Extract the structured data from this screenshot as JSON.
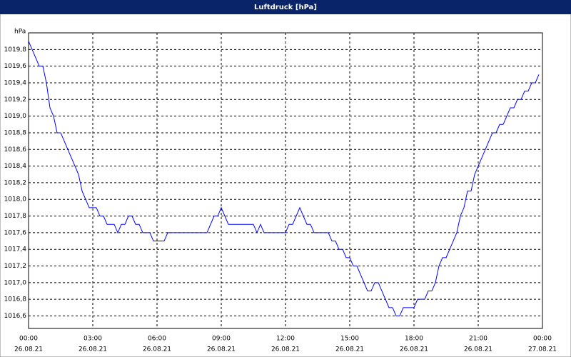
{
  "chart_data": {
    "type": "line",
    "title": "Luftdruck [hPa]",
    "y_unit": "hPa",
    "x": [
      0,
      10,
      20,
      30,
      40,
      50,
      60,
      70,
      80,
      90,
      100,
      110,
      120,
      130,
      140,
      150,
      160,
      170,
      180,
      190,
      200,
      210,
      220,
      230,
      240,
      250,
      260,
      270,
      280,
      290,
      300,
      310,
      320,
      330,
      340,
      350,
      360,
      370,
      380,
      390,
      400,
      410,
      420,
      430,
      440,
      450,
      460,
      470,
      480,
      490,
      500,
      510,
      520,
      530,
      540,
      550,
      560,
      570,
      580,
      590,
      600,
      610,
      620,
      630,
      640,
      650,
      660,
      670,
      680,
      690,
      700,
      710,
      720,
      730,
      740,
      750,
      760,
      770,
      780,
      790,
      800,
      810,
      820,
      830,
      840,
      850,
      860,
      870,
      880,
      890,
      900,
      910,
      920,
      930,
      940,
      950,
      960,
      970,
      980,
      990,
      1000,
      1010,
      1020,
      1030,
      1040,
      1050,
      1060,
      1070,
      1080,
      1090,
      1100,
      1110,
      1120,
      1130,
      1140,
      1150,
      1160,
      1170,
      1180,
      1190,
      1200,
      1210,
      1220,
      1230,
      1240,
      1250,
      1260,
      1270,
      1280,
      1290,
      1300,
      1310,
      1320,
      1330,
      1340,
      1350,
      1360,
      1370,
      1380,
      1390,
      1400,
      1410,
      1420,
      1430
    ],
    "series": [
      {
        "color": "#0000ff",
        "values": [
          1019.9,
          1019.8,
          1019.7,
          1019.6,
          1019.6,
          1019.4,
          1019.1,
          1019.0,
          1018.8,
          1018.8,
          1018.7,
          1018.6,
          1018.5,
          1018.4,
          1018.3,
          1018.1,
          1018.0,
          1017.9,
          1017.9,
          1017.9,
          1017.8,
          1017.8,
          1017.7,
          1017.7,
          1017.7,
          1017.6,
          1017.7,
          1017.7,
          1017.8,
          1017.8,
          1017.7,
          1017.7,
          1017.6,
          1017.6,
          1017.6,
          1017.5,
          1017.5,
          1017.5,
          1017.5,
          1017.6,
          1017.6,
          1017.6,
          1017.6,
          1017.6,
          1017.6,
          1017.6,
          1017.6,
          1017.6,
          1017.6,
          1017.6,
          1017.6,
          1017.7,
          1017.8,
          1017.8,
          1017.9,
          1017.8,
          1017.7,
          1017.7,
          1017.7,
          1017.7,
          1017.7,
          1017.7,
          1017.7,
          1017.7,
          1017.6,
          1017.7,
          1017.6,
          1017.6,
          1017.6,
          1017.6,
          1017.6,
          1017.6,
          1017.6,
          1017.7,
          1017.7,
          1017.8,
          1017.9,
          1017.8,
          1017.7,
          1017.7,
          1017.6,
          1017.6,
          1017.6,
          1017.6,
          1017.6,
          1017.5,
          1017.5,
          1017.4,
          1017.4,
          1017.3,
          1017.3,
          1017.2,
          1017.2,
          1017.1,
          1017.0,
          1016.9,
          1016.9,
          1017.0,
          1017.0,
          1016.9,
          1016.8,
          1016.7,
          1016.7,
          1016.6,
          1016.6,
          1016.7,
          1016.7,
          1016.7,
          1016.7,
          1016.8,
          1016.8,
          1016.8,
          1016.9,
          1016.9,
          1017.0,
          1017.2,
          1017.3,
          1017.3,
          1017.4,
          1017.5,
          1017.6,
          1017.8,
          1017.9,
          1018.1,
          1018.1,
          1018.3,
          1018.4,
          1018.5,
          1018.6,
          1018.7,
          1018.8,
          1018.8,
          1018.9,
          1018.9,
          1019.0,
          1019.1,
          1019.1,
          1019.2,
          1019.2,
          1019.3,
          1019.3,
          1019.4,
          1019.4,
          1019.5
        ]
      }
    ],
    "xlim": [
      0,
      1440
    ],
    "xticks": [
      {
        "value": 0,
        "label": "00:00",
        "sublabel": "26.08.21"
      },
      {
        "value": 180,
        "label": "03:00",
        "sublabel": "26.08.21"
      },
      {
        "value": 360,
        "label": "06:00",
        "sublabel": "26.08.21"
      },
      {
        "value": 540,
        "label": "09:00",
        "sublabel": "26.08.21"
      },
      {
        "value": 720,
        "label": "12:00",
        "sublabel": "26.08.21"
      },
      {
        "value": 900,
        "label": "15:00",
        "sublabel": "26.08.21"
      },
      {
        "value": 1080,
        "label": "18:00",
        "sublabel": "26.08.21"
      },
      {
        "value": 1260,
        "label": "21:00",
        "sublabel": "26.08.21"
      },
      {
        "value": 1440,
        "label": "00:00",
        "sublabel": "27.08.21"
      }
    ],
    "ylim": [
      1016.45,
      1020.0
    ],
    "yticks": [
      {
        "value": 1016.6,
        "label": "1016,6"
      },
      {
        "value": 1016.8,
        "label": "1016,8"
      },
      {
        "value": 1017.0,
        "label": "1017,0"
      },
      {
        "value": 1017.2,
        "label": "1017,2"
      },
      {
        "value": 1017.4,
        "label": "1017,4"
      },
      {
        "value": 1017.6,
        "label": "1017,6"
      },
      {
        "value": 1017.8,
        "label": "1017,8"
      },
      {
        "value": 1018.0,
        "label": "1018,0"
      },
      {
        "value": 1018.2,
        "label": "1018,2"
      },
      {
        "value": 1018.4,
        "label": "1018,4"
      },
      {
        "value": 1018.6,
        "label": "1018,6"
      },
      {
        "value": 1018.8,
        "label": "1018,8"
      },
      {
        "value": 1019.0,
        "label": "1019,0"
      },
      {
        "value": 1019.2,
        "label": "1019,2"
      },
      {
        "value": 1019.4,
        "label": "1019,4"
      },
      {
        "value": 1019.6,
        "label": "1019,6"
      },
      {
        "value": 1019.8,
        "label": "1019,8"
      }
    ],
    "grid": true
  }
}
